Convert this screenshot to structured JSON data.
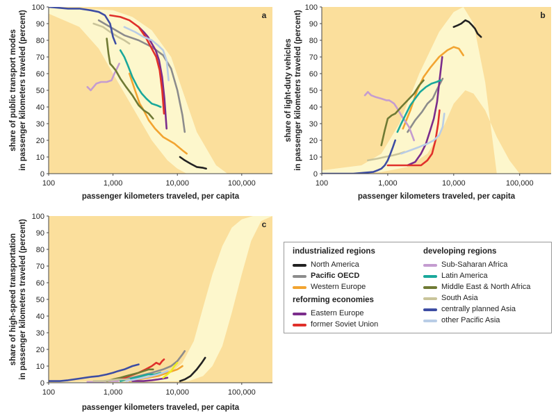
{
  "colors": {
    "background_band": "#fbdf9c",
    "envelope": "#fdf7cc",
    "North America": "#222222",
    "Pacific OECD": "#8c8c8c",
    "Western Europe": "#f2a431",
    "Eastern Europe": "#7b2d8c",
    "former Soviet Union": "#e0302a",
    "Sub-Saharan Africa": "#c49cd0",
    "Latin America": "#1aa89b",
    "Middle East & North Africa": "#6f7a34",
    "South Asia": "#c9c49a",
    "centrally planned Asia": "#3d4da3",
    "other Pacific Asia": "#b9cde6",
    "highlight": "#eeee22"
  },
  "legend": {
    "industrialized_title": "industrialized regions",
    "industrialized": [
      "North America",
      "Pacific OECD",
      "Western Europe"
    ],
    "reforming_title": "reforming economies",
    "reforming": [
      "Eastern Europe",
      "former Soviet Union"
    ],
    "developing_title": "developing regions",
    "developing": [
      "Sub-Saharan Africa",
      "Latin America",
      "Middle East & North Africa",
      "South Asia",
      "centrally planned Asia",
      "other Pacific Asia"
    ]
  },
  "chart_data": [
    {
      "panel": "a",
      "type": "line",
      "xlabel": "passenger kilometers traveled, per capita",
      "ylabel": [
        "share of public transport modes",
        "in passenger kilometers traveled (percent)"
      ],
      "x_scale": "log",
      "xlim": [
        100,
        300000
      ],
      "ylim": [
        0,
        100
      ],
      "x_ticks": [
        "100",
        "1,000",
        "10,000",
        "100,000"
      ],
      "y_ticks": [
        0,
        10,
        20,
        30,
        40,
        50,
        60,
        70,
        80,
        90,
        100
      ],
      "series": [
        {
          "name": "North America",
          "x": [
            11000,
            13000,
            16000,
            20000,
            25000,
            28000
          ],
          "y": [
            10,
            8,
            6,
            4,
            3.5,
            3
          ]
        },
        {
          "name": "Pacific OECD",
          "x": [
            600,
            900,
            1500,
            2500,
            4000,
            6000,
            8000,
            10000,
            12000,
            13000
          ],
          "y": [
            92,
            88,
            83,
            80,
            76,
            71,
            63,
            50,
            35,
            25
          ]
        },
        {
          "name": "Western Europe",
          "x": [
            1800,
            2200,
            2600,
            3000,
            3600,
            4500,
            6000,
            9000,
            12000,
            14000
          ],
          "y": [
            60,
            50,
            42,
            38,
            32,
            27,
            22,
            18,
            14,
            12
          ]
        },
        {
          "name": "Eastern Europe",
          "x": [
            2500,
            3000,
            3500,
            4000,
            4600,
            5200,
            5800,
            6300,
            6800
          ],
          "y": [
            88,
            85,
            82,
            78,
            74,
            68,
            58,
            45,
            27
          ]
        },
        {
          "name": "former Soviet Union",
          "x": [
            900,
            1300,
            1800,
            2500,
            3200,
            4000,
            4700,
            5300,
            5800,
            6200
          ],
          "y": [
            95,
            94,
            92,
            88,
            82,
            75,
            70,
            62,
            50,
            36
          ]
        },
        {
          "name": "Sub-Saharan Africa",
          "x": [
            400,
            450,
            550,
            650,
            800,
            950,
            1050,
            1150,
            1250
          ],
          "y": [
            52,
            50,
            54,
            55,
            55,
            56,
            60,
            63,
            66
          ]
        },
        {
          "name": "Latin America",
          "x": [
            1300,
            1500,
            1700,
            2000,
            2400,
            2800,
            3300,
            4000,
            4800,
            5500
          ],
          "y": [
            74,
            70,
            65,
            58,
            52,
            48,
            45,
            42,
            41,
            40
          ]
        },
        {
          "name": "Middle East & North Africa",
          "x": [
            800,
            850,
            900,
            1000,
            1100,
            1300,
            1600,
            2000,
            2500,
            3000,
            3600,
            4200
          ],
          "y": [
            81,
            72,
            66,
            64,
            62,
            57,
            52,
            47,
            41,
            38,
            36,
            33
          ]
        },
        {
          "name": "South Asia",
          "x": [
            500,
            700,
            900,
            1200,
            1500,
            1800
          ],
          "y": [
            90,
            88,
            85,
            82,
            80,
            78
          ]
        },
        {
          "name": "centrally planned Asia",
          "x": [
            100,
            200,
            300,
            450,
            600,
            750,
            900,
            1000,
            1100
          ],
          "y": [
            100,
            99,
            99,
            98,
            97,
            95,
            90,
            82,
            78
          ]
        },
        {
          "name": "other Pacific Asia",
          "x": [
            1500,
            2200,
            3000,
            4000,
            5000,
            6000,
            6800,
            7300
          ],
          "y": [
            88,
            85,
            82,
            80,
            77,
            74,
            68,
            56
          ]
        }
      ],
      "envelope": {
        "upper": {
          "x": [
            100,
            1000,
            2000,
            4000,
            8000,
            12000,
            20000,
            40000,
            60000
          ],
          "y": [
            100,
            98,
            94,
            86,
            70,
            50,
            25,
            5,
            0
          ]
        },
        "lower": {
          "x": [
            100,
            300,
            600,
            1000,
            2000,
            4000,
            7000,
            10000,
            14000
          ],
          "y": [
            96,
            88,
            75,
            60,
            40,
            20,
            8,
            3,
            0
          ]
        }
      }
    },
    {
      "panel": "b",
      "type": "line",
      "xlabel": "passenger kilometers traveled, per capita",
      "ylabel": [
        "share of light-duty vehicles",
        "in passenger kilometers traveled (percent)"
      ],
      "x_scale": "log",
      "xlim": [
        100,
        300000
      ],
      "ylim": [
        0,
        100
      ],
      "x_ticks": [
        "100",
        "1,000",
        "10,000",
        "100,000"
      ],
      "y_ticks": [
        0,
        10,
        20,
        30,
        40,
        50,
        60,
        70,
        80,
        90,
        100
      ],
      "series": [
        {
          "name": "North America",
          "x": [
            10000,
            11500,
            13000,
            15000,
            17000,
            19000,
            21000,
            23000,
            26000
          ],
          "y": [
            88,
            89,
            90,
            92,
            91,
            89,
            87,
            84,
            82
          ]
        },
        {
          "name": "Pacific OECD",
          "x": [
            2000,
            2600,
            3300,
            4000,
            4800,
            5500,
            6200,
            6800
          ],
          "y": [
            25,
            32,
            37,
            42,
            45,
            50,
            54,
            57
          ]
        },
        {
          "name": "Western Europe",
          "x": [
            1700,
            2200,
            2800,
            3500,
            4500,
            6000,
            8000,
            10000,
            12000,
            14000
          ],
          "y": [
            27,
            38,
            50,
            58,
            64,
            70,
            74,
            76,
            75,
            71
          ]
        },
        {
          "name": "Eastern Europe",
          "x": [
            2000,
            2600,
            3200,
            3800,
            4400,
            5000,
            5600,
            6100,
            6700
          ],
          "y": [
            5,
            7,
            12,
            18,
            26,
            33,
            43,
            56,
            70
          ]
        },
        {
          "name": "former Soviet Union",
          "x": [
            1000,
            1300,
            1800,
            2500,
            3200,
            4000,
            4700,
            5300,
            5800,
            6100
          ],
          "y": [
            5,
            5,
            5,
            5,
            5,
            8,
            12,
            20,
            30,
            38
          ]
        },
        {
          "name": "Sub-Saharan Africa",
          "x": [
            450,
            500,
            560,
            650,
            800,
            950,
            1050,
            1150,
            1250,
            1400,
            1600,
            1800,
            2100,
            2500
          ],
          "y": [
            47,
            49,
            47,
            46,
            45,
            44,
            44,
            43,
            42,
            39,
            35,
            32,
            28,
            20
          ]
        },
        {
          "name": "Latin America",
          "x": [
            1400,
            1600,
            1900,
            2200,
            2600,
            3100,
            3800,
            4600,
            5500,
            6300
          ],
          "y": [
            25,
            30,
            36,
            41,
            45,
            49,
            52,
            54,
            55,
            56
          ]
        },
        {
          "name": "Middle East & North Africa",
          "x": [
            800,
            900,
            1000,
            1150,
            1300,
            1600,
            2000,
            2500,
            3000,
            3500
          ],
          "y": [
            17,
            26,
            33,
            35,
            36,
            40,
            44,
            48,
            53,
            56
          ]
        },
        {
          "name": "South Asia",
          "x": [
            500,
            700,
            900,
            1200,
            1500,
            1800
          ],
          "y": [
            8,
            9,
            10,
            11,
            12,
            13
          ]
        },
        {
          "name": "centrally planned Asia",
          "x": [
            100,
            300,
            600,
            700,
            800,
            900,
            1000,
            1100,
            1200,
            1300
          ],
          "y": [
            0,
            0,
            1,
            2,
            3,
            5,
            8,
            12,
            16,
            20
          ]
        },
        {
          "name": "other Pacific Asia",
          "x": [
            1600,
            2200,
            3000,
            4000,
            5000,
            6000,
            6800,
            7200
          ],
          "y": [
            12,
            14,
            16,
            18,
            20,
            23,
            28,
            36
          ]
        }
      ],
      "envelope": {
        "upper": {
          "x": [
            100,
            400,
            800,
            1500,
            3000,
            6000,
            10000,
            14000,
            20000,
            30000,
            45000
          ],
          "y": [
            2,
            5,
            12,
            30,
            60,
            85,
            97,
            100,
            90,
            55,
            0
          ]
        },
        "lower": {
          "x": [
            100,
            800,
            2000,
            4000,
            7000,
            10000,
            15000,
            20000,
            30000,
            45000,
            70000,
            100000
          ],
          "y": [
            0,
            1,
            4,
            12,
            28,
            42,
            50,
            48,
            38,
            22,
            8,
            0
          ]
        }
      }
    },
    {
      "panel": "c",
      "type": "line",
      "xlabel": "passenger kilometers traveled, per capita",
      "ylabel": [
        "share of high-speed transportation",
        "in passenger kilometers traveled (percent)"
      ],
      "x_scale": "log",
      "xlim": [
        100,
        300000
      ],
      "ylim": [
        0,
        100
      ],
      "x_ticks": [
        "100",
        "1,000",
        "10,000",
        "100,000"
      ],
      "y_ticks": [
        0,
        10,
        20,
        30,
        40,
        50,
        60,
        70,
        80,
        90,
        100
      ],
      "series": [
        {
          "name": "North America",
          "x": [
            11000,
            13000,
            16000,
            20000,
            24000,
            27000
          ],
          "y": [
            1,
            2,
            4,
            8,
            12,
            15
          ]
        },
        {
          "name": "Pacific OECD",
          "x": [
            1500,
            2500,
            4000,
            6000,
            8000,
            10000,
            12000,
            13000
          ],
          "y": [
            2,
            4,
            6,
            8,
            10,
            13,
            17,
            19
          ]
        },
        {
          "name": "Western Europe",
          "x": [
            1800,
            2500,
            3500,
            5000,
            7000,
            10000,
            12000
          ],
          "y": [
            1,
            2,
            3,
            4,
            6,
            8,
            10
          ]
        },
        {
          "name": "Eastern Europe",
          "x": [
            2000,
            3000,
            4000,
            5000,
            6000,
            7000
          ],
          "y": [
            1,
            1,
            1.5,
            2,
            2.5,
            3
          ]
        },
        {
          "name": "former Soviet Union",
          "x": [
            900,
            1300,
            1800,
            2500,
            3200,
            4000,
            4700,
            5300,
            5800,
            6200
          ],
          "y": [
            1,
            2,
            4,
            6,
            8,
            10,
            12,
            11,
            13,
            14
          ]
        },
        {
          "name": "Sub-Saharan Africa",
          "x": [
            400,
            600,
            800,
            1000,
            1200
          ],
          "y": [
            0.5,
            0.5,
            1,
            1,
            1
          ]
        },
        {
          "name": "Latin America",
          "x": [
            1300,
            1700,
            2200,
            2800,
            3500,
            4500,
            5500
          ],
          "y": [
            1,
            2,
            3,
            4,
            5,
            5,
            6
          ]
        },
        {
          "name": "Middle East & North Africa",
          "x": [
            800,
            1000,
            1300,
            1600,
            2000,
            2500,
            3000,
            3600,
            4200
          ],
          "y": [
            1,
            2,
            3,
            4,
            5,
            6,
            7,
            8,
            8
          ]
        },
        {
          "name": "South Asia",
          "x": [
            500,
            700,
            900,
            1200,
            1500,
            1800
          ],
          "y": [
            1,
            1,
            1.5,
            2,
            2,
            2
          ]
        },
        {
          "name": "centrally planned Asia",
          "x": [
            100,
            150,
            200,
            300,
            450,
            600,
            800,
            1000,
            1200,
            1500,
            2000,
            2500
          ],
          "y": [
            1,
            1,
            1.5,
            2.5,
            3.5,
            4,
            5,
            6,
            7,
            8,
            10,
            11
          ]
        },
        {
          "name": "other Pacific Asia",
          "x": [
            1600,
            2200,
            3000,
            4000,
            5000,
            6000,
            7000
          ],
          "y": [
            1,
            2,
            3,
            4,
            5,
            6,
            7
          ]
        },
        {
          "name": "highlight",
          "x": [
            6000,
            7000,
            8000,
            9000,
            10000
          ],
          "y": [
            3,
            5,
            7,
            10,
            12
          ]
        }
      ],
      "envelope": {
        "upper": {
          "x": [
            100,
            3000,
            8000,
            12000,
            18000,
            25000,
            35000,
            50000,
            70000,
            100000,
            150000
          ],
          "y": [
            0,
            2,
            6,
            12,
            25,
            45,
            65,
            82,
            93,
            98,
            100
          ]
        },
        "lower": {
          "x": [
            100,
            15000,
            25000,
            35000,
            50000,
            70000,
            100000,
            140000,
            200000,
            300000
          ],
          "y": [
            0,
            1,
            4,
            10,
            22,
            42,
            65,
            85,
            97,
            100
          ]
        }
      }
    }
  ]
}
